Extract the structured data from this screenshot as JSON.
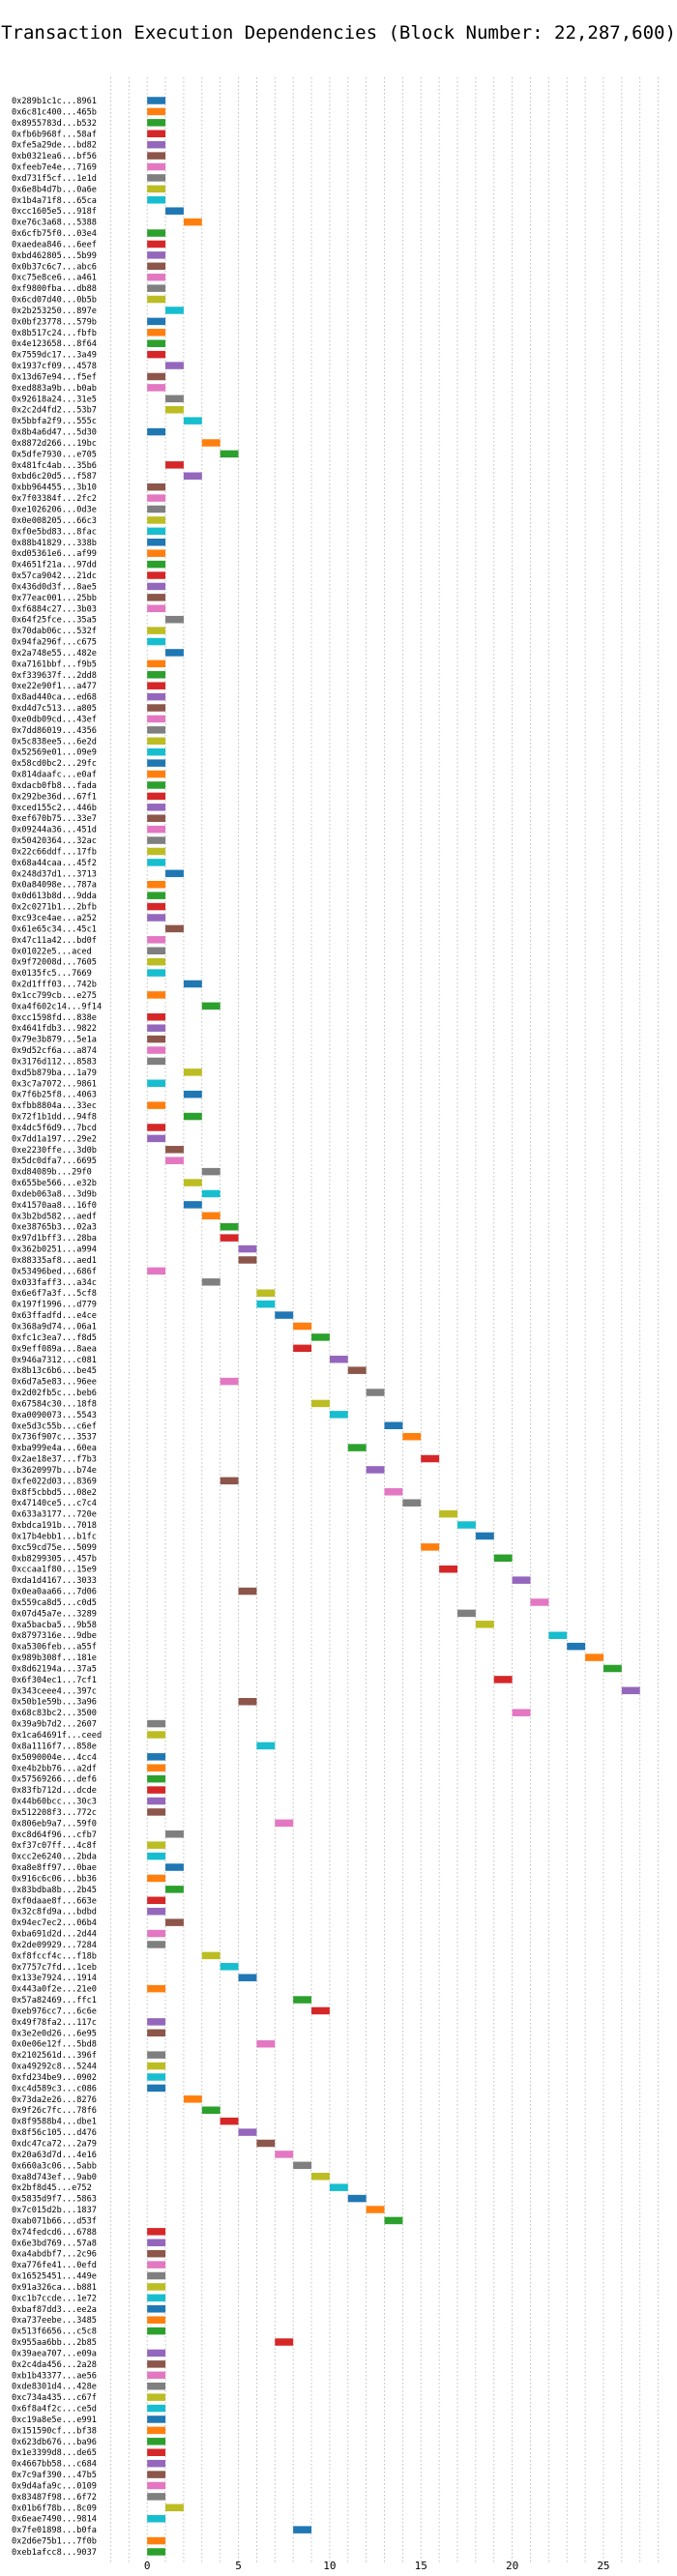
{
  "chart_data": {
    "type": "bar",
    "orientation": "horizontal",
    "title": "Transaction Execution Dependencies (Block Number: 22,287,600)",
    "xlabel": "",
    "ylabel": "",
    "xlim": [
      -2.5,
      28.5
    ],
    "xticks": [
      0,
      5,
      10,
      15,
      20,
      25
    ],
    "grid": "vertical dotted",
    "legend": "none",
    "palette": [
      "#1f77b4",
      "#ff7f0e",
      "#2ca02c",
      "#d62728",
      "#9467bd",
      "#8c564b",
      "#e377c2",
      "#7f7f7f",
      "#bcbd22",
      "#17becf"
    ],
    "bar_width": 1,
    "rows": [
      {
        "label": "0x289b1c1c...8961",
        "start": 0
      },
      {
        "label": "0x6c81c400...465b",
        "start": 0
      },
      {
        "label": "0x8955783d...b532",
        "start": 0
      },
      {
        "label": "0xfb6b968f...58af",
        "start": 0
      },
      {
        "label": "0xfe5a29de...bd82",
        "start": 0
      },
      {
        "label": "0xb0321ea6...bf56",
        "start": 0
      },
      {
        "label": "0xfeeb7e4e...7169",
        "start": 0
      },
      {
        "label": "0xd731f5cf...1e1d",
        "start": 0
      },
      {
        "label": "0x6e8b4d7b...0a6e",
        "start": 0
      },
      {
        "label": "0x1b4a71f8...65ca",
        "start": 0
      },
      {
        "label": "0xcc1605e5...918f",
        "start": 1
      },
      {
        "label": "0xe76c3a68...5388",
        "start": 2
      },
      {
        "label": "0x6cfb75f0...03e4",
        "start": 0
      },
      {
        "label": "0xaedea846...6eef",
        "start": 0
      },
      {
        "label": "0xbd462805...5b99",
        "start": 0
      },
      {
        "label": "0x0b37c6c7...abc6",
        "start": 0
      },
      {
        "label": "0xc75e8ce6...a461",
        "start": 0
      },
      {
        "label": "0xf9800fba...db88",
        "start": 0
      },
      {
        "label": "0x6cd07d40...0b5b",
        "start": 0
      },
      {
        "label": "0x2b253250...897e",
        "start": 1
      },
      {
        "label": "0x0bf23778...579b",
        "start": 0
      },
      {
        "label": "0x8b517c24...fbfb",
        "start": 0
      },
      {
        "label": "0x4e123658...8f64",
        "start": 0
      },
      {
        "label": "0x7559dc17...3a49",
        "start": 0
      },
      {
        "label": "0x1937cf09...4578",
        "start": 1
      },
      {
        "label": "0x13d67e94...f5ef",
        "start": 0
      },
      {
        "label": "0xed883a9b...b0ab",
        "start": 0
      },
      {
        "label": "0x92618a24...31e5",
        "start": 1
      },
      {
        "label": "0x2c2d4fd2...53b7",
        "start": 1
      },
      {
        "label": "0x5bbfa2f9...555c",
        "start": 2
      },
      {
        "label": "0x8b4a6d47...5d30",
        "start": 0
      },
      {
        "label": "0x8872d266...19bc",
        "start": 3
      },
      {
        "label": "0x5dfe7930...e705",
        "start": 4
      },
      {
        "label": "0x481fc4ab...35b6",
        "start": 1
      },
      {
        "label": "0xbd6c20d5...f587",
        "start": 2
      },
      {
        "label": "0xbb964455...3b10",
        "start": 0
      },
      {
        "label": "0x7f03384f...2fc2",
        "start": 0
      },
      {
        "label": "0xe1026206...0d3e",
        "start": 0
      },
      {
        "label": "0x0e008205...66c3",
        "start": 0
      },
      {
        "label": "0xf0e5bd83...8fac",
        "start": 0
      },
      {
        "label": "0x88b41829...338b",
        "start": 0
      },
      {
        "label": "0xd05361e6...af99",
        "start": 0
      },
      {
        "label": "0x4651f21a...97dd",
        "start": 0
      },
      {
        "label": "0x57ca9042...21dc",
        "start": 0
      },
      {
        "label": "0x436d0d3f...8ae5",
        "start": 0
      },
      {
        "label": "0x77eac001...25bb",
        "start": 0
      },
      {
        "label": "0xf6884c27...3b03",
        "start": 0
      },
      {
        "label": "0x64f25fce...35a5",
        "start": 1
      },
      {
        "label": "0x70dab06c...532f",
        "start": 0
      },
      {
        "label": "0x94fa296f...c675",
        "start": 0
      },
      {
        "label": "0x2a748e55...482e",
        "start": 1
      },
      {
        "label": "0xa7161bbf...f9b5",
        "start": 0
      },
      {
        "label": "0xf339637f...2dd8",
        "start": 0
      },
      {
        "label": "0xe22e90f1...a477",
        "start": 0
      },
      {
        "label": "0x8ad440ca...ed68",
        "start": 0
      },
      {
        "label": "0xd4d7c513...a805",
        "start": 0
      },
      {
        "label": "0xe0db09cd...43ef",
        "start": 0
      },
      {
        "label": "0x7dd86019...4356",
        "start": 0
      },
      {
        "label": "0x5c838ee5...6e2d",
        "start": 0
      },
      {
        "label": "0x52569e01...09e9",
        "start": 0
      },
      {
        "label": "0x58cd0bc2...29fc",
        "start": 0
      },
      {
        "label": "0x814daafc...e0af",
        "start": 0
      },
      {
        "label": "0xdacb0fb8...fada",
        "start": 0
      },
      {
        "label": "0x292be36d...67f1",
        "start": 0
      },
      {
        "label": "0xced155c2...446b",
        "start": 0
      },
      {
        "label": "0xef670b75...33e7",
        "start": 0
      },
      {
        "label": "0x09244a36...451d",
        "start": 0
      },
      {
        "label": "0x50420364...32ac",
        "start": 0
      },
      {
        "label": "0x22c66ddf...17fb",
        "start": 0
      },
      {
        "label": "0x68a44caa...45f2",
        "start": 0
      },
      {
        "label": "0x248d37d1...3713",
        "start": 1
      },
      {
        "label": "0x0a84098e...787a",
        "start": 0
      },
      {
        "label": "0x0d613b8d...9dda",
        "start": 0
      },
      {
        "label": "0x2c0271b1...2bfb",
        "start": 0
      },
      {
        "label": "0xc93ce4ae...a252",
        "start": 0
      },
      {
        "label": "0x61e65c34...45c1",
        "start": 1
      },
      {
        "label": "0x47c11a42...bd0f",
        "start": 0
      },
      {
        "label": "0x01022e5...aced",
        "start": 0
      },
      {
        "label": "0x9f72008d...7605",
        "start": 0
      },
      {
        "label": "0x0135fc5...7669",
        "start": 0
      },
      {
        "label": "0x2d1fff03...742b",
        "start": 2
      },
      {
        "label": "0x1cc799cb...e275",
        "start": 0
      },
      {
        "label": "0xa4f602c14...9f14",
        "start": 3
      },
      {
        "label": "0xcc1598fd...838e",
        "start": 0
      },
      {
        "label": "0x4641fdb3...9822",
        "start": 0
      },
      {
        "label": "0x79e3b879...5e1a",
        "start": 0
      },
      {
        "label": "0x9d52cf6a...a874",
        "start": 0
      },
      {
        "label": "0x3176d112...8583",
        "start": 0
      },
      {
        "label": "0xd5b879ba...1a79",
        "start": 2
      },
      {
        "label": "0x3c7a7072...9861",
        "start": 0
      },
      {
        "label": "0x7f6b25f8...4063",
        "start": 2
      },
      {
        "label": "0xfbb8804a...33ec",
        "start": 0
      },
      {
        "label": "0x72f1b1dd...94f8",
        "start": 2
      },
      {
        "label": "0x4dc5f6d9...7bcd",
        "start": 0
      },
      {
        "label": "0x7dd1a197...29e2",
        "start": 0
      },
      {
        "label": "0xe2230ffe...3d0b",
        "start": 1
      },
      {
        "label": "0x5dc0dfa7...6695",
        "start": 1
      },
      {
        "label": "0xd84089b...29f0",
        "start": 3
      },
      {
        "label": "0x655be566...e32b",
        "start": 2
      },
      {
        "label": "0xdeb063a8...3d9b",
        "start": 3
      },
      {
        "label": "0x41570aa8...16f0",
        "start": 2
      },
      {
        "label": "0x3b2bd582...aedf",
        "start": 3
      },
      {
        "label": "0xe38765b3...02a3",
        "start": 4
      },
      {
        "label": "0x97d1bff3...28ba",
        "start": 4
      },
      {
        "label": "0x362b0251...a994",
        "start": 5
      },
      {
        "label": "0x88335af8...aed1",
        "start": 5
      },
      {
        "label": "0x53496bed...686f",
        "start": 0
      },
      {
        "label": "0x033faff3...a34c",
        "start": 3
      },
      {
        "label": "0x6e6f7a3f...5cf8",
        "start": 6
      },
      {
        "label": "0x197f1996...d779",
        "start": 6
      },
      {
        "label": "0x63ffadfd...e4ce",
        "start": 7
      },
      {
        "label": "0x368a9d74...06a1",
        "start": 8
      },
      {
        "label": "0xfc1c3ea7...f8d5",
        "start": 9
      },
      {
        "label": "0x9eff089a...8aea",
        "start": 8
      },
      {
        "label": "0x946a7312...c081",
        "start": 10
      },
      {
        "label": "0x8b13c6b6...be45",
        "start": 11
      },
      {
        "label": "0x6d7a5e83...96ee",
        "start": 4
      },
      {
        "label": "0x2d02fb5c...beb6",
        "start": 12
      },
      {
        "label": "0x67584c30...18f8",
        "start": 9
      },
      {
        "label": "0xa0090073...5543",
        "start": 10
      },
      {
        "label": "0xe5d3c55b...c6ef",
        "start": 13
      },
      {
        "label": "0x736f907c...3537",
        "start": 14
      },
      {
        "label": "0xba999e4a...60ea",
        "start": 11
      },
      {
        "label": "0x2ae18e37...f7b3",
        "start": 15
      },
      {
        "label": "0x3620997b...b74e",
        "start": 12
      },
      {
        "label": "0xfe022d03...8369",
        "start": 4
      },
      {
        "label": "0x8f5cbbd5...08e2",
        "start": 13
      },
      {
        "label": "0x47140ce5...c7c4",
        "start": 14
      },
      {
        "label": "0x633a3177...720e",
        "start": 16
      },
      {
        "label": "0xbdca191b...7018",
        "start": 17
      },
      {
        "label": "0x17b4ebb1...b1fc",
        "start": 18
      },
      {
        "label": "0xc59cd75e...5099",
        "start": 15
      },
      {
        "label": "0xb8299305...457b",
        "start": 19
      },
      {
        "label": "0xccaa1f80...15e9",
        "start": 16
      },
      {
        "label": "0xda1d4167...3033",
        "start": 20
      },
      {
        "label": "0x0ea0aa66...7d06",
        "start": 5
      },
      {
        "label": "0x559ca8d5...c0d5",
        "start": 21
      },
      {
        "label": "0x07d45a7e...3289",
        "start": 17
      },
      {
        "label": "0xa5bacba5...9b58",
        "start": 18
      },
      {
        "label": "0x8797316e...9dbe",
        "start": 22
      },
      {
        "label": "0xa5306feb...a55f",
        "start": 23
      },
      {
        "label": "0x989b308f...181e",
        "start": 24
      },
      {
        "label": "0x8d62194a...37a5",
        "start": 25
      },
      {
        "label": "0x6f304ec1...7cf1",
        "start": 19
      },
      {
        "label": "0x343ceee4...397c",
        "start": 26
      },
      {
        "label": "0x50b1e59b...3a96",
        "start": 5
      },
      {
        "label": "0x68c83bc2...3500",
        "start": 20
      },
      {
        "label": "0x39a9b7d2...2607",
        "start": 0
      },
      {
        "label": "0x1ca64691f...ceed",
        "start": 0
      },
      {
        "label": "0x8a1116f7...858e",
        "start": 6
      },
      {
        "label": "0x5090004e...4cc4",
        "start": 0
      },
      {
        "label": "0xe4b2bb76...a2df",
        "start": 0
      },
      {
        "label": "0x57569266...def6",
        "start": 0
      },
      {
        "label": "0x83fb712d...dcde",
        "start": 0
      },
      {
        "label": "0x44b60bcc...30c3",
        "start": 0
      },
      {
        "label": "0x512208f3...772c",
        "start": 0
      },
      {
        "label": "0x806eb9a7...59f0",
        "start": 7
      },
      {
        "label": "0xc8d64f96...cfb7",
        "start": 1
      },
      {
        "label": "0xf37c07ff...4c8f",
        "start": 0
      },
      {
        "label": "0xcc2e6240...2bda",
        "start": 0
      },
      {
        "label": "0xa8e8ff97...0bae",
        "start": 1
      },
      {
        "label": "0x916c6c06...bb36",
        "start": 0
      },
      {
        "label": "0x83bdba8b...2b45",
        "start": 1
      },
      {
        "label": "0xf0daae8f...663e",
        "start": 0
      },
      {
        "label": "0x32c8fd9a...bdbd",
        "start": 0
      },
      {
        "label": "0x94ec7ec2...06b4",
        "start": 1
      },
      {
        "label": "0xba691d2d...2d44",
        "start": 0
      },
      {
        "label": "0x2de09929...7284",
        "start": 0
      },
      {
        "label": "0xf8fccf4c...f18b",
        "start": 3
      },
      {
        "label": "0x7757c7fd...1ceb",
        "start": 4
      },
      {
        "label": "0x133e7924...1914",
        "start": 5
      },
      {
        "label": "0x443a0f2e...21e0",
        "start": 0
      },
      {
        "label": "0x57a82469...ffc1",
        "start": 8
      },
      {
        "label": "0xeb976cc7...6c6e",
        "start": 9
      },
      {
        "label": "0x49f78fa2...117c",
        "start": 0
      },
      {
        "label": "0x3e2e0d26...6e95",
        "start": 0
      },
      {
        "label": "0x0e06e12f...5bd8",
        "start": 6
      },
      {
        "label": "0x2102561d...396f",
        "start": 0
      },
      {
        "label": "0xa49292c8...5244",
        "start": 0
      },
      {
        "label": "0xfd234be9...0902",
        "start": 0
      },
      {
        "label": "0xc4d589c3...c086",
        "start": 0
      },
      {
        "label": "0x73da2e26...8276",
        "start": 2
      },
      {
        "label": "0x9f26c7fc...78f6",
        "start": 3
      },
      {
        "label": "0x8f9588b4...dbe1",
        "start": 4
      },
      {
        "label": "0x8f56c105...d476",
        "start": 5
      },
      {
        "label": "0xdc47ca72...2a79",
        "start": 6
      },
      {
        "label": "0x20a63d7d...4e16",
        "start": 7
      },
      {
        "label": "0x660a3c06...5abb",
        "start": 8
      },
      {
        "label": "0xa8d743ef...9ab0",
        "start": 9
      },
      {
        "label": "0x2bf8d45...e752",
        "start": 10
      },
      {
        "label": "0x5835d9f7...5863",
        "start": 11
      },
      {
        "label": "0x7c015d2b...1837",
        "start": 12
      },
      {
        "label": "0xab071b66...d53f",
        "start": 13
      },
      {
        "label": "0x74fedcd6...6788",
        "start": 0
      },
      {
        "label": "0x6e3bd769...57a8",
        "start": 0
      },
      {
        "label": "0xa4abdbf7...2c96",
        "start": 0
      },
      {
        "label": "0xa776fe41...0efd",
        "start": 0
      },
      {
        "label": "0x16525451...449e",
        "start": 0
      },
      {
        "label": "0x91a326ca...b881",
        "start": 0
      },
      {
        "label": "0xc1b7ccde...1e72",
        "start": 0
      },
      {
        "label": "0xbaf87dd3...ee2a",
        "start": 0
      },
      {
        "label": "0xa737eebe...3485",
        "start": 0
      },
      {
        "label": "0x513f6656...c5c8",
        "start": 0
      },
      {
        "label": "0x955aa6bb...2b85",
        "start": 7
      },
      {
        "label": "0x39aea707...e09a",
        "start": 0
      },
      {
        "label": "0x2c4da456...2a28",
        "start": 0
      },
      {
        "label": "0xb1b43377...ae56",
        "start": 0
      },
      {
        "label": "0xde8301d4...428e",
        "start": 0
      },
      {
        "label": "0xc734a435...c67f",
        "start": 0
      },
      {
        "label": "0x6f8a4f2c...ce5d",
        "start": 0
      },
      {
        "label": "0xc19a8e5e...e991",
        "start": 0
      },
      {
        "label": "0x151590cf...bf38",
        "start": 0
      },
      {
        "label": "0x623db676...ba96",
        "start": 0
      },
      {
        "label": "0x1e3399d8...de65",
        "start": 0
      },
      {
        "label": "0x4667bb58...c684",
        "start": 0
      },
      {
        "label": "0x7c9af390...47b5",
        "start": 0
      },
      {
        "label": "0x9d4afa9c...0109",
        "start": 0
      },
      {
        "label": "0x83487f98...6f72",
        "start": 0
      },
      {
        "label": "0x01b6f78b...8c09",
        "start": 1
      },
      {
        "label": "0x6eae7490...9814",
        "start": 0
      },
      {
        "label": "0x7fe01898...b0fa",
        "start": 8
      },
      {
        "label": "0x2d6e75b1...7f0b",
        "start": 0
      },
      {
        "label": "0xeb1afcc8...9037",
        "start": 0
      }
    ]
  }
}
